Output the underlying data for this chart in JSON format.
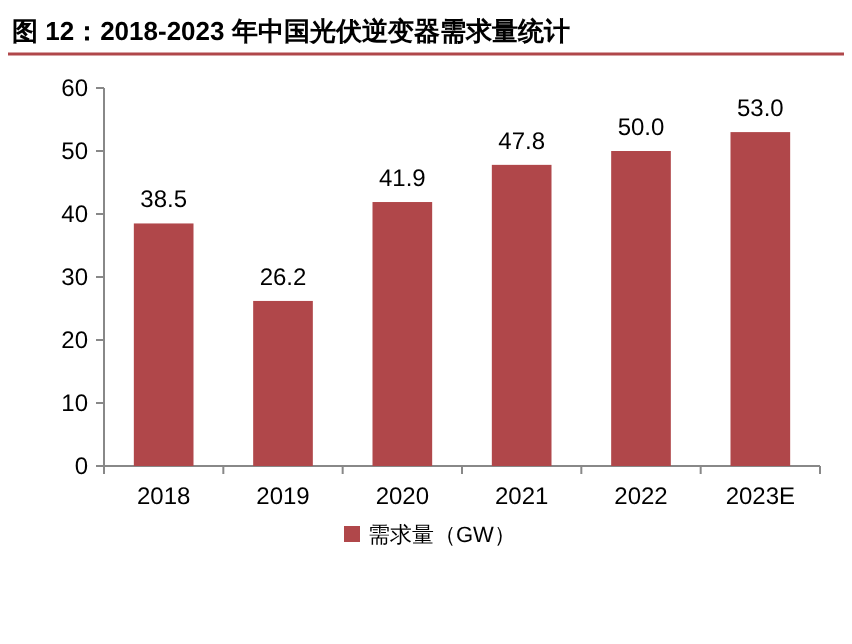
{
  "chart_data": {
    "type": "bar",
    "title": "图 12：2018-2023 年中国光伏逆变器需求量统计",
    "categories": [
      "2018",
      "2019",
      "2020",
      "2021",
      "2022",
      "2023E"
    ],
    "series": [
      {
        "name": "需求量（GW）",
        "color": "#b0474a",
        "values": [
          38.5,
          26.2,
          41.9,
          47.8,
          50.0,
          53.0
        ],
        "value_labels": [
          "38.5",
          "26.2",
          "41.9",
          "47.8",
          "50.0",
          "53.0"
        ]
      }
    ],
    "ylim": [
      0,
      60
    ],
    "yticks": [
      0,
      10,
      20,
      30,
      40,
      50,
      60
    ],
    "legend": "bottom"
  }
}
